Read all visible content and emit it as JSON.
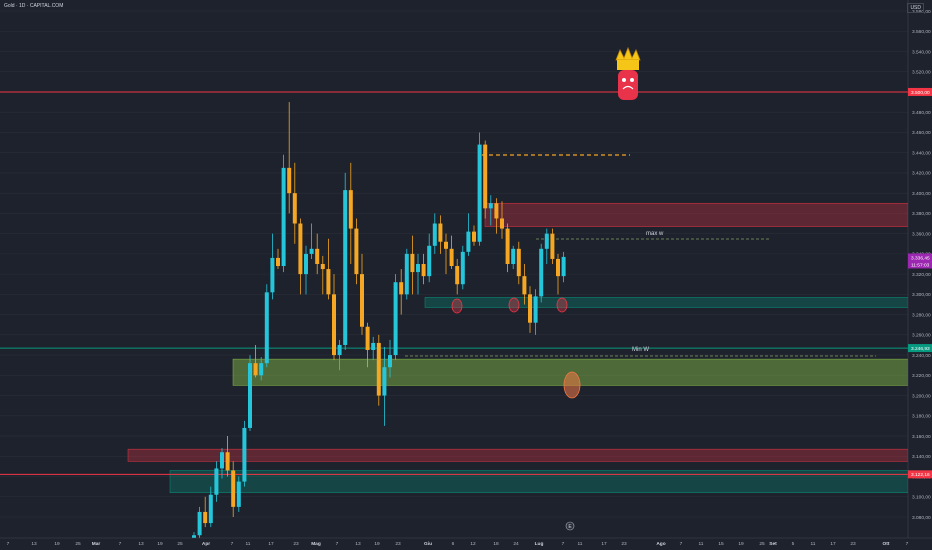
{
  "header": {
    "title": "Gold · 1D · CAPITAL.COM",
    "currency": "USD"
  },
  "chart_data": {
    "type": "candlestick",
    "ylim": [
      3060,
      3600
    ],
    "y_ticks": [
      "3.080,00",
      "3.100,00",
      "3.120,00",
      "3.140,00",
      "3.160,00",
      "3.180,00",
      "3.200,00",
      "3.220,00",
      "3.240,00",
      "3.260,00",
      "3.280,00",
      "3.300,00",
      "3.320,00",
      "3.340,00",
      "3.360,00",
      "3.380,00",
      "3.400,00",
      "3.420,00",
      "3.440,00",
      "3.460,00",
      "3.480,00",
      "3.520,00",
      "3.540,00",
      "3.560,00",
      "3.580,00"
    ],
    "x_ticks": [
      "7",
      "13",
      "19",
      "25",
      "Mar",
      "7",
      "13",
      "19",
      "25",
      "Apr",
      "7",
      "11",
      "17",
      "23",
      "Mag",
      "7",
      "13",
      "19",
      "23",
      "Giu",
      "6",
      "12",
      "18",
      "24",
      "Lug",
      "7",
      "11",
      "17",
      "23",
      "Ago",
      "7",
      "11",
      "15",
      "19",
      "25",
      "Set",
      "5",
      "11",
      "17",
      "23",
      "Ott",
      "7"
    ],
    "price_labels": [
      {
        "text": "3.500,00",
        "value": 3500,
        "color": "#f23645"
      },
      {
        "text": "3.336,45",
        "value": 3336.45,
        "color": "#9c27b0"
      },
      {
        "text": "11:57:03",
        "value": 3330,
        "color": "#9c27b0"
      },
      {
        "text": "3.246,93",
        "value": 3246.93,
        "color": "#089981"
      },
      {
        "text": "3.122,16",
        "value": 3122.16,
        "color": "#f23645"
      }
    ],
    "horizontal_lines": [
      {
        "value": 3500,
        "color": "#f23645"
      },
      {
        "value": 3246.93,
        "color": "#089981"
      },
      {
        "value": 3122.16,
        "color": "#f23645"
      }
    ],
    "zones": [
      {
        "from": 3367,
        "to": 3390,
        "kind": "supply",
        "color": "#f23645"
      },
      {
        "from": 3287,
        "to": 3297,
        "kind": "demand",
        "color": "#089981"
      },
      {
        "from": 3210,
        "to": 3236,
        "kind": "demand-highlight",
        "color": "#8bc34a"
      },
      {
        "from": 3135,
        "to": 3147,
        "kind": "supply",
        "color": "#f23645"
      },
      {
        "from": 3104,
        "to": 3126,
        "kind": "demand",
        "color": "#089981"
      }
    ],
    "annotations": [
      {
        "text": "max w"
      },
      {
        "text": "Min W"
      }
    ],
    "candles": [
      [
        3050,
        3065,
        3040,
        3062
      ],
      [
        3062,
        3090,
        3058,
        3085
      ],
      [
        3085,
        3100,
        3070,
        3074
      ],
      [
        3074,
        3110,
        3070,
        3102
      ],
      [
        3102,
        3135,
        3095,
        3128
      ],
      [
        3128,
        3148,
        3118,
        3144
      ],
      [
        3144,
        3160,
        3120,
        3126
      ],
      [
        3126,
        3135,
        3080,
        3090
      ],
      [
        3090,
        3120,
        3085,
        3115
      ],
      [
        3115,
        3175,
        3110,
        3168
      ],
      [
        3168,
        3240,
        3165,
        3232
      ],
      [
        3232,
        3250,
        3218,
        3220
      ],
      [
        3220,
        3238,
        3215,
        3232
      ],
      [
        3232,
        3310,
        3228,
        3302
      ],
      [
        3302,
        3360,
        3295,
        3336
      ],
      [
        3336,
        3345,
        3325,
        3328
      ],
      [
        3328,
        3438,
        3322,
        3425
      ],
      [
        3425,
        3490,
        3380,
        3400
      ],
      [
        3400,
        3430,
        3350,
        3370
      ],
      [
        3370,
        3375,
        3300,
        3320
      ],
      [
        3320,
        3348,
        3300,
        3340
      ],
      [
        3340,
        3370,
        3335,
        3345
      ],
      [
        3345,
        3360,
        3320,
        3330
      ],
      [
        3330,
        3338,
        3300,
        3325
      ],
      [
        3325,
        3355,
        3295,
        3300
      ],
      [
        3300,
        3320,
        3235,
        3240
      ],
      [
        3240,
        3255,
        3225,
        3250
      ],
      [
        3250,
        3420,
        3245,
        3403
      ],
      [
        3403,
        3430,
        3330,
        3365
      ],
      [
        3365,
        3375,
        3310,
        3320
      ],
      [
        3320,
        3340,
        3260,
        3268
      ],
      [
        3268,
        3272,
        3228,
        3245
      ],
      [
        3245,
        3258,
        3235,
        3252
      ],
      [
        3252,
        3260,
        3190,
        3200
      ],
      [
        3200,
        3248,
        3170,
        3228
      ],
      [
        3228,
        3255,
        3218,
        3240
      ],
      [
        3240,
        3320,
        3235,
        3312
      ],
      [
        3312,
        3325,
        3280,
        3300
      ],
      [
        3300,
        3345,
        3295,
        3340
      ],
      [
        3340,
        3358,
        3300,
        3322
      ],
      [
        3322,
        3340,
        3300,
        3330
      ],
      [
        3330,
        3340,
        3310,
        3318
      ],
      [
        3318,
        3360,
        3312,
        3348
      ],
      [
        3348,
        3380,
        3340,
        3370
      ],
      [
        3370,
        3378,
        3340,
        3352
      ],
      [
        3352,
        3360,
        3320,
        3345
      ],
      [
        3345,
        3358,
        3325,
        3328
      ],
      [
        3328,
        3335,
        3300,
        3310
      ],
      [
        3310,
        3348,
        3305,
        3342
      ],
      [
        3342,
        3380,
        3338,
        3362
      ],
      [
        3362,
        3368,
        3348,
        3352
      ],
      [
        3352,
        3460,
        3348,
        3448
      ],
      [
        3448,
        3452,
        3375,
        3385
      ],
      [
        3385,
        3398,
        3368,
        3390
      ],
      [
        3390,
        3395,
        3360,
        3375
      ],
      [
        3375,
        3392,
        3355,
        3365
      ],
      [
        3365,
        3370,
        3322,
        3330
      ],
      [
        3330,
        3348,
        3325,
        3345
      ],
      [
        3345,
        3352,
        3310,
        3318
      ],
      [
        3318,
        3330,
        3290,
        3300
      ],
      [
        3300,
        3308,
        3262,
        3272
      ],
      [
        3272,
        3305,
        3260,
        3298
      ],
      [
        3298,
        3350,
        3292,
        3345
      ],
      [
        3345,
        3365,
        3330,
        3360
      ],
      [
        3360,
        3365,
        3330,
        3335
      ],
      [
        3335,
        3340,
        3300,
        3318
      ],
      [
        3318,
        3342,
        3312,
        3337
      ]
    ]
  },
  "marker": {
    "label": "E"
  }
}
